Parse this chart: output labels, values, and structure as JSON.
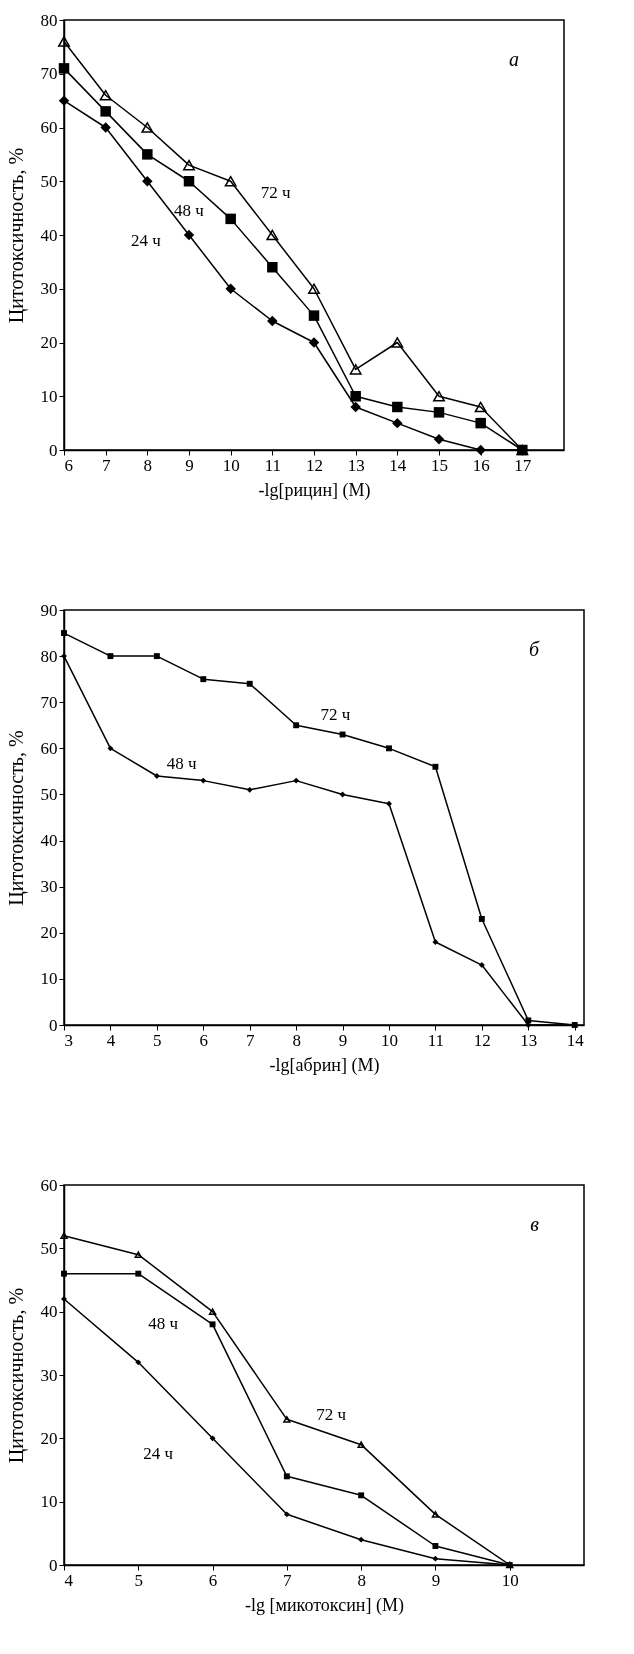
{
  "chart_data": [
    {
      "type": "line",
      "xlabel": "-lg[рицин] (M)",
      "ylabel": "Цитотоксичность, %",
      "annotations": [
        "а"
      ],
      "x": [
        6,
        7,
        8,
        9,
        10,
        11,
        12,
        13,
        14,
        15,
        16,
        17
      ],
      "xlim": [
        6,
        18
      ],
      "xticks": [
        6,
        7,
        8,
        9,
        10,
        11,
        12,
        13,
        14,
        15,
        16,
        17
      ],
      "ylim": [
        0,
        80
      ],
      "yticks": [
        0,
        10,
        20,
        30,
        40,
        50,
        60,
        70,
        80
      ],
      "series": [
        {
          "name": "72 ч",
          "color": "#000000",
          "marker": "triangle",
          "values": [
            76,
            66,
            60,
            53,
            50,
            40,
            30,
            15,
            20,
            10,
            8,
            0
          ]
        },
        {
          "name": "48 ч",
          "color": "#000000",
          "marker": "square",
          "values": [
            71,
            63,
            55,
            50,
            43,
            34,
            25,
            10,
            8,
            7,
            5,
            0
          ]
        },
        {
          "name": "24 ч",
          "color": "#000000",
          "marker": "diamond",
          "values": [
            65,
            60,
            50,
            40,
            30,
            24,
            20,
            8,
            5,
            2,
            0,
            0
          ]
        }
      ]
    },
    {
      "type": "line",
      "xlabel": "-lg[абрин] (M)",
      "ylabel": "Цитотоксичность, %",
      "annotations": [
        "б"
      ],
      "x": [
        3,
        4,
        5,
        6,
        7,
        8,
        9,
        10,
        11,
        12,
        13,
        14
      ],
      "xlim": [
        3,
        14.2
      ],
      "xticks": [
        3,
        4,
        5,
        6,
        7,
        8,
        9,
        10,
        11,
        12,
        13,
        14
      ],
      "ylim": [
        0,
        90
      ],
      "yticks": [
        0,
        10,
        20,
        30,
        40,
        50,
        60,
        70,
        80,
        90
      ],
      "series": [
        {
          "name": "72 ч",
          "color": "#000000",
          "marker": "square",
          "values": [
            85,
            80,
            80,
            75,
            74,
            65,
            63,
            60,
            56,
            23,
            1,
            0
          ]
        },
        {
          "name": "48 ч",
          "color": "#000000",
          "marker": "diamond",
          "values": [
            80,
            60,
            54,
            53,
            51,
            53,
            50,
            48,
            18,
            13,
            0,
            0
          ]
        }
      ]
    },
    {
      "type": "line",
      "xlabel": "-lg [микотоксин] (M)",
      "ylabel": "Цитотоксичность, %",
      "annotations": [
        "в"
      ],
      "x": [
        4,
        5,
        6,
        7,
        8,
        9,
        10
      ],
      "xlim": [
        4,
        11
      ],
      "xticks": [
        4,
        5,
        6,
        7,
        8,
        9,
        10
      ],
      "ylim": [
        0,
        60
      ],
      "yticks": [
        0,
        10,
        20,
        30,
        40,
        50,
        60
      ],
      "series": [
        {
          "name": "72 ч",
          "color": "#000000",
          "marker": "triangle",
          "values": [
            52,
            49,
            40,
            23,
            19,
            8,
            0
          ]
        },
        {
          "name": "48 ч",
          "color": "#000000",
          "marker": "square",
          "values": [
            46,
            46,
            38,
            14,
            11,
            3,
            0
          ]
        },
        {
          "name": "24 ч",
          "color": "#000000",
          "marker": "diamond",
          "values": [
            42,
            32,
            20,
            8,
            4,
            1,
            0
          ]
        }
      ]
    }
  ]
}
